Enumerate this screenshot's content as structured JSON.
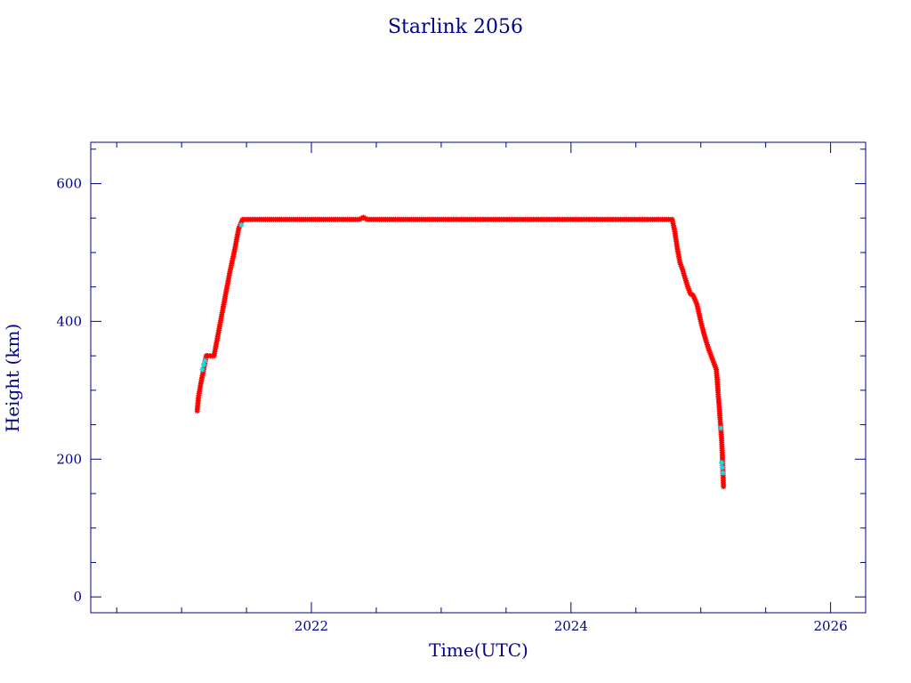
{
  "chart_data": {
    "type": "scatter",
    "title": "Starlink 2056",
    "xlabel": "Time(UTC)",
    "ylabel": "Height (km)",
    "xlim": [
      2020.3,
      2026.27
    ],
    "ylim": [
      -23,
      660
    ],
    "x_ticks": [
      2022,
      2024,
      2026
    ],
    "y_ticks": [
      0,
      200,
      400,
      600
    ],
    "x_minor_step": 0.5,
    "y_minor_step": 50,
    "grid": false,
    "colors": {
      "frame": "#00008b",
      "main": "#ff0000",
      "highlight": "#00e5ee",
      "trace": "#000000"
    },
    "series": [
      {
        "values_note_free": true,
        "x": [
          2021.12,
          2021.13,
          2021.15,
          2021.17,
          2021.19,
          2021.2,
          2021.22,
          2021.25,
          2021.29,
          2021.33,
          2021.37,
          2021.41,
          2021.44,
          2021.47,
          2021.6,
          2021.8,
          2022.0,
          2022.2,
          2022.37,
          2022.4,
          2022.43,
          2022.6,
          2022.8,
          2023.0,
          2023.2,
          2023.4,
          2023.6,
          2023.8,
          2024.0,
          2024.2,
          2024.4,
          2024.6,
          2024.78,
          2024.8,
          2024.82,
          2024.84,
          2024.86,
          2024.88,
          2024.9,
          2024.92,
          2024.94,
          2024.97,
          2025.0,
          2025.02,
          2025.04,
          2025.06,
          2025.08,
          2025.1,
          2025.12,
          2025.13,
          2025.14,
          2025.15,
          2025.16,
          2025.165,
          2025.17,
          2025.175
        ],
        "y": [
          270,
          290,
          312,
          330,
          350,
          350,
          350,
          350,
          390,
          430,
          470,
          505,
          535,
          548,
          548,
          548,
          548,
          548,
          548,
          551,
          548,
          548,
          548,
          548,
          548,
          548,
          548,
          548,
          548,
          548,
          548,
          548,
          548,
          530,
          505,
          485,
          475,
          462,
          450,
          440,
          438,
          425,
          400,
          385,
          372,
          360,
          350,
          340,
          330,
          305,
          280,
          255,
          230,
          210,
          185,
          160
        ]
      }
    ],
    "highlight_points": {
      "x": [
        2021.16,
        2021.17,
        2021.18,
        2021.46,
        2025.155,
        2025.16,
        2025.165,
        2025.17
      ],
      "y": [
        330,
        337,
        343,
        540,
        245,
        195,
        188,
        180
      ]
    }
  }
}
